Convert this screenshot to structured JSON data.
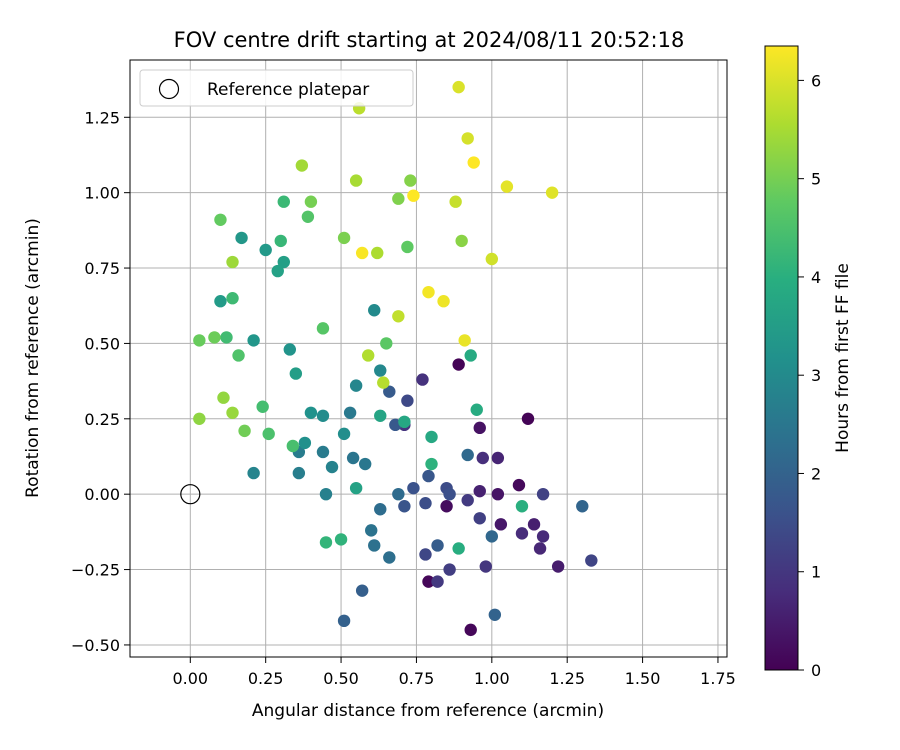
{
  "chart_data": {
    "type": "scatter",
    "title": "FOV centre drift starting at 2024/08/11 20:52:18",
    "xlabel": "Angular distance from reference (arcmin)",
    "ylabel": "Rotation from reference (arcmin)",
    "xlim": [
      -0.2,
      1.78
    ],
    "ylim": [
      -0.54,
      1.44
    ],
    "xticks": [
      0.0,
      0.25,
      0.5,
      0.75,
      1.0,
      1.25,
      1.5,
      1.75
    ],
    "xtick_labels": [
      "0.00",
      "0.25",
      "0.50",
      "0.75",
      "1.00",
      "1.25",
      "1.50",
      "1.75"
    ],
    "yticks": [
      -0.5,
      -0.25,
      0.0,
      0.25,
      0.5,
      0.75,
      1.0,
      1.25
    ],
    "ytick_labels": [
      "−0.50",
      "−0.25",
      "0.00",
      "0.25",
      "0.50",
      "0.75",
      "1.00",
      "1.25"
    ],
    "grid": true,
    "colormap": "viridis",
    "colorbar": {
      "label": "Hours from first FF file",
      "range": [
        0,
        6.35
      ],
      "ticks": [
        0,
        1,
        2,
        3,
        4,
        5,
        6
      ],
      "tick_labels": [
        "0",
        "1",
        "2",
        "3",
        "4",
        "5",
        "6"
      ]
    },
    "reference_point": {
      "x": 0.0,
      "y": 0.0,
      "label": "Reference platepar"
    },
    "legend": {
      "location": "top-left",
      "entries": [
        "Reference platepar"
      ]
    },
    "points": [
      {
        "x": 0.89,
        "y": 0.43,
        "c": 0.05
      },
      {
        "x": 1.12,
        "y": 0.25,
        "c": 0.05
      },
      {
        "x": 0.79,
        "y": -0.29,
        "c": 0.1
      },
      {
        "x": 0.93,
        "y": -0.45,
        "c": 0.1
      },
      {
        "x": 1.09,
        "y": 0.03,
        "c": 0.15
      },
      {
        "x": 0.85,
        "y": -0.04,
        "c": 0.2
      },
      {
        "x": 0.96,
        "y": 0.22,
        "c": 0.3
      },
      {
        "x": 1.02,
        "y": 0.0,
        "c": 0.35
      },
      {
        "x": 1.03,
        "y": -0.1,
        "c": 0.4
      },
      {
        "x": 1.22,
        "y": -0.24,
        "c": 0.5
      },
      {
        "x": 1.14,
        "y": -0.1,
        "c": 0.55
      },
      {
        "x": 0.96,
        "y": 0.01,
        "c": 0.6
      },
      {
        "x": 1.02,
        "y": 0.12,
        "c": 0.65
      },
      {
        "x": 1.16,
        "y": -0.18,
        "c": 0.7
      },
      {
        "x": 1.17,
        "y": -0.14,
        "c": 0.75
      },
      {
        "x": 1.1,
        "y": -0.13,
        "c": 0.8
      },
      {
        "x": 0.97,
        "y": 0.12,
        "c": 0.85
      },
      {
        "x": 0.77,
        "y": 0.38,
        "c": 0.9
      },
      {
        "x": 0.71,
        "y": 0.23,
        "c": 0.95
      },
      {
        "x": 0.98,
        "y": -0.24,
        "c": 1.0
      },
      {
        "x": 0.82,
        "y": -0.29,
        "c": 1.05
      },
      {
        "x": 0.92,
        "y": -0.02,
        "c": 1.1
      },
      {
        "x": 0.86,
        "y": -0.25,
        "c": 1.15
      },
      {
        "x": 0.96,
        "y": -0.08,
        "c": 1.2
      },
      {
        "x": 1.17,
        "y": 0.0,
        "c": 1.25
      },
      {
        "x": 1.33,
        "y": -0.22,
        "c": 1.3
      },
      {
        "x": 0.78,
        "y": -0.2,
        "c": 1.35
      },
      {
        "x": 0.72,
        "y": 0.31,
        "c": 1.4
      },
      {
        "x": 0.85,
        "y": 0.02,
        "c": 1.45
      },
      {
        "x": 0.78,
        "y": -0.03,
        "c": 1.5
      },
      {
        "x": 0.86,
        "y": 0.0,
        "c": 1.55
      },
      {
        "x": 0.74,
        "y": 0.02,
        "c": 1.6
      },
      {
        "x": 0.71,
        "y": -0.04,
        "c": 1.65
      },
      {
        "x": 0.79,
        "y": 0.06,
        "c": 1.7
      },
      {
        "x": 0.68,
        "y": 0.23,
        "c": 1.75
      },
      {
        "x": 0.66,
        "y": 0.34,
        "c": 1.8
      },
      {
        "x": 0.82,
        "y": -0.17,
        "c": 1.85
      },
      {
        "x": 0.57,
        "y": -0.32,
        "c": 1.9
      },
      {
        "x": 0.51,
        "y": -0.42,
        "c": 1.95
      },
      {
        "x": 1.01,
        "y": -0.4,
        "c": 2.0
      },
      {
        "x": 1.3,
        "y": -0.04,
        "c": 2.05
      },
      {
        "x": 1.0,
        "y": -0.14,
        "c": 2.1
      },
      {
        "x": 0.92,
        "y": 0.13,
        "c": 2.15
      },
      {
        "x": 0.69,
        "y": 0.0,
        "c": 2.2
      },
      {
        "x": 0.63,
        "y": -0.05,
        "c": 2.25
      },
      {
        "x": 0.66,
        "y": -0.21,
        "c": 2.3
      },
      {
        "x": 0.61,
        "y": -0.17,
        "c": 2.35
      },
      {
        "x": 0.6,
        "y": -0.12,
        "c": 2.4
      },
      {
        "x": 0.54,
        "y": 0.12,
        "c": 2.45
      },
      {
        "x": 0.58,
        "y": 0.1,
        "c": 2.5
      },
      {
        "x": 0.53,
        "y": 0.27,
        "c": 2.55
      },
      {
        "x": 0.44,
        "y": 0.14,
        "c": 2.6
      },
      {
        "x": 0.36,
        "y": 0.14,
        "c": 2.65
      },
      {
        "x": 0.36,
        "y": 0.07,
        "c": 2.7
      },
      {
        "x": 0.45,
        "y": 0.0,
        "c": 2.75
      },
      {
        "x": 0.47,
        "y": 0.09,
        "c": 2.8
      },
      {
        "x": 0.21,
        "y": 0.07,
        "c": 2.85
      },
      {
        "x": 0.55,
        "y": 0.36,
        "c": 2.9
      },
      {
        "x": 0.63,
        "y": 0.41,
        "c": 2.95
      },
      {
        "x": 0.61,
        "y": 0.61,
        "c": 3.0
      },
      {
        "x": 0.44,
        "y": 0.26,
        "c": 3.05
      },
      {
        "x": 0.51,
        "y": 0.2,
        "c": 3.1
      },
      {
        "x": 0.38,
        "y": 0.17,
        "c": 3.15
      },
      {
        "x": 0.4,
        "y": 0.27,
        "c": 3.2
      },
      {
        "x": 0.33,
        "y": 0.48,
        "c": 3.25
      },
      {
        "x": 0.21,
        "y": 0.51,
        "c": 3.3
      },
      {
        "x": 0.17,
        "y": 0.85,
        "c": 3.35
      },
      {
        "x": 0.25,
        "y": 0.81,
        "c": 3.4
      },
      {
        "x": 0.1,
        "y": 0.64,
        "c": 3.45
      },
      {
        "x": 0.35,
        "y": 0.4,
        "c": 3.5
      },
      {
        "x": 0.31,
        "y": 0.77,
        "c": 3.55
      },
      {
        "x": 0.29,
        "y": 0.74,
        "c": 3.6
      },
      {
        "x": 0.55,
        "y": 0.02,
        "c": 3.65
      },
      {
        "x": 0.63,
        "y": 0.26,
        "c": 3.7
      },
      {
        "x": 0.71,
        "y": 0.24,
        "c": 3.75
      },
      {
        "x": 0.8,
        "y": 0.19,
        "c": 3.8
      },
      {
        "x": 0.93,
        "y": 0.46,
        "c": 3.85
      },
      {
        "x": 0.95,
        "y": 0.28,
        "c": 3.9
      },
      {
        "x": 0.89,
        "y": -0.18,
        "c": 3.95
      },
      {
        "x": 1.1,
        "y": -0.04,
        "c": 4.0
      },
      {
        "x": 0.8,
        "y": 0.1,
        "c": 4.05
      },
      {
        "x": 0.5,
        "y": -0.15,
        "c": 4.1
      },
      {
        "x": 0.45,
        "y": -0.16,
        "c": 4.15
      },
      {
        "x": 0.3,
        "y": 0.84,
        "c": 4.2
      },
      {
        "x": 0.31,
        "y": 0.97,
        "c": 4.25
      },
      {
        "x": 0.14,
        "y": 0.65,
        "c": 4.3
      },
      {
        "x": 0.12,
        "y": 0.52,
        "c": 4.35
      },
      {
        "x": 0.24,
        "y": 0.29,
        "c": 4.4
      },
      {
        "x": 0.34,
        "y": 0.16,
        "c": 4.45
      },
      {
        "x": 0.26,
        "y": 0.2,
        "c": 4.5
      },
      {
        "x": 0.16,
        "y": 0.46,
        "c": 4.55
      },
      {
        "x": 0.39,
        "y": 0.92,
        "c": 4.6
      },
      {
        "x": 0.44,
        "y": 0.55,
        "c": 4.65
      },
      {
        "x": 0.65,
        "y": 0.5,
        "c": 4.7
      },
      {
        "x": 0.72,
        "y": 0.82,
        "c": 4.75
      },
      {
        "x": 0.1,
        "y": 0.91,
        "c": 4.8
      },
      {
        "x": 0.03,
        "y": 0.51,
        "c": 4.85
      },
      {
        "x": 0.08,
        "y": 0.52,
        "c": 4.9
      },
      {
        "x": 0.18,
        "y": 0.21,
        "c": 4.95
      },
      {
        "x": 0.4,
        "y": 0.97,
        "c": 5.0
      },
      {
        "x": 0.51,
        "y": 0.85,
        "c": 5.05
      },
      {
        "x": 0.69,
        "y": 0.98,
        "c": 5.1
      },
      {
        "x": 0.73,
        "y": 1.04,
        "c": 5.15
      },
      {
        "x": 0.9,
        "y": 0.84,
        "c": 5.2
      },
      {
        "x": 0.03,
        "y": 0.25,
        "c": 5.25
      },
      {
        "x": 0.11,
        "y": 0.32,
        "c": 5.3
      },
      {
        "x": 0.14,
        "y": 0.27,
        "c": 5.35
      },
      {
        "x": 0.14,
        "y": 0.77,
        "c": 5.4
      },
      {
        "x": 0.37,
        "y": 1.09,
        "c": 5.45
      },
      {
        "x": 0.55,
        "y": 1.04,
        "c": 5.5
      },
      {
        "x": 0.62,
        "y": 0.8,
        "c": 5.55
      },
      {
        "x": 0.59,
        "y": 0.46,
        "c": 5.6
      },
      {
        "x": 0.64,
        "y": 0.37,
        "c": 5.65
      },
      {
        "x": 0.56,
        "y": 1.28,
        "c": 5.7
      },
      {
        "x": 0.69,
        "y": 0.59,
        "c": 5.75
      },
      {
        "x": 0.88,
        "y": 0.97,
        "c": 5.8
      },
      {
        "x": 1.0,
        "y": 0.78,
        "c": 5.9
      },
      {
        "x": 0.92,
        "y": 1.18,
        "c": 5.95
      },
      {
        "x": 0.89,
        "y": 1.35,
        "c": 6.0
      },
      {
        "x": 1.2,
        "y": 1.0,
        "c": 6.05
      },
      {
        "x": 1.05,
        "y": 1.02,
        "c": 6.1
      },
      {
        "x": 0.91,
        "y": 0.51,
        "c": 6.15
      },
      {
        "x": 0.84,
        "y": 0.64,
        "c": 6.2
      },
      {
        "x": 0.79,
        "y": 0.67,
        "c": 6.25
      },
      {
        "x": 0.57,
        "y": 0.8,
        "c": 6.3
      },
      {
        "x": 0.94,
        "y": 1.1,
        "c": 6.35
      },
      {
        "x": 0.74,
        "y": 0.99,
        "c": 6.35
      }
    ]
  },
  "colors": {
    "reference_marker": "#000000",
    "grid": "#b0b0b0",
    "background": "#ffffff"
  }
}
